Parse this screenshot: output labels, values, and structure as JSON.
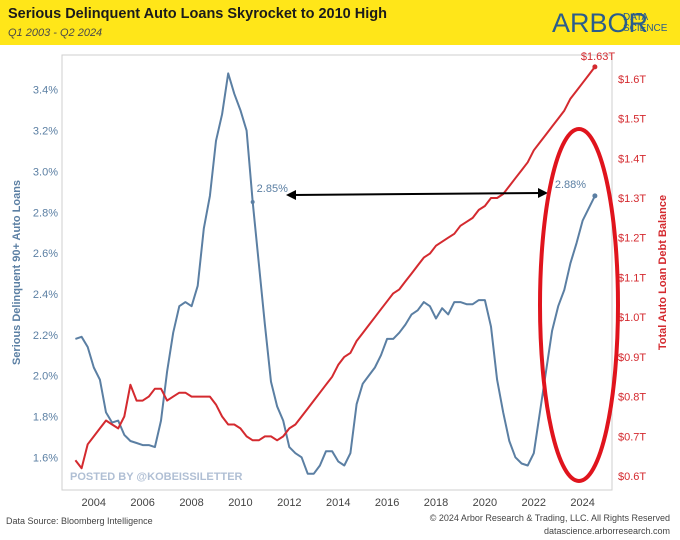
{
  "header": {
    "title": "Serious Delinquent Auto Loans Skyrocket to 2010 High",
    "subtitle": "Q1 2003 - Q2 2024",
    "logo_word": "ARBOR",
    "logo_sub_top": "DATA",
    "logo_sub_bottom": "SCIENCE"
  },
  "colors": {
    "header_bg": "#ffe619",
    "delinquency": "#5b7fa3",
    "debt": "#d42a2f",
    "arrow": "#000000",
    "ellipse": "#e0141d"
  },
  "chart_data": {
    "type": "line",
    "xlabel": "",
    "x_ticks": [
      "2004",
      "2006",
      "2008",
      "2010",
      "2012",
      "2014",
      "2016",
      "2018",
      "2020",
      "2022",
      "2024"
    ],
    "left_axis": {
      "label": "Serious Delinquent 90+ Auto Loans",
      "range": [
        1.44,
        3.57
      ],
      "ticks": [
        "1.6%",
        "1.8%",
        "2.0%",
        "2.2%",
        "2.4%",
        "2.6%",
        "2.8%",
        "3.0%",
        "3.2%",
        "3.4%"
      ]
    },
    "right_axis": {
      "label": "Total Auto Loan Debt Balance",
      "range": [
        0.565,
        1.66
      ],
      "ticks": [
        "$0.6T",
        "$0.7T",
        "$0.8T",
        "$0.9T",
        "$1.0T",
        "$1.1T",
        "$1.2T",
        "$1.3T",
        "$1.4T",
        "$1.5T",
        "$1.6T"
      ]
    },
    "series": [
      {
        "name": "Serious Delinquent 90+ Auto Loans",
        "axis": "left",
        "x": [
          2003.25,
          2003.5,
          2003.75,
          2004.0,
          2004.25,
          2004.5,
          2004.75,
          2005.0,
          2005.25,
          2005.5,
          2005.75,
          2006.0,
          2006.25,
          2006.5,
          2006.75,
          2007.0,
          2007.25,
          2007.5,
          2007.75,
          2008.0,
          2008.25,
          2008.5,
          2008.75,
          2009.0,
          2009.25,
          2009.5,
          2009.75,
          2010.0,
          2010.25,
          2010.5,
          2010.75,
          2011.0,
          2011.25,
          2011.5,
          2011.75,
          2012.0,
          2012.25,
          2012.5,
          2012.75,
          2013.0,
          2013.25,
          2013.5,
          2013.75,
          2014.0,
          2014.25,
          2014.5,
          2014.75,
          2015.0,
          2015.25,
          2015.5,
          2015.75,
          2016.0,
          2016.25,
          2016.5,
          2016.75,
          2017.0,
          2017.25,
          2017.5,
          2017.75,
          2018.0,
          2018.25,
          2018.5,
          2018.75,
          2019.0,
          2019.25,
          2019.5,
          2019.75,
          2020.0,
          2020.25,
          2020.5,
          2020.75,
          2021.0,
          2021.25,
          2021.5,
          2021.75,
          2022.0,
          2022.25,
          2022.5,
          2022.75,
          2023.0,
          2023.25,
          2023.5,
          2023.75,
          2024.0,
          2024.25,
          2024.5
        ],
        "values": [
          2.18,
          2.19,
          2.14,
          2.04,
          1.98,
          1.82,
          1.77,
          1.78,
          1.71,
          1.68,
          1.67,
          1.66,
          1.66,
          1.65,
          1.78,
          2.02,
          2.21,
          2.34,
          2.36,
          2.34,
          2.44,
          2.72,
          2.88,
          3.15,
          3.28,
          3.48,
          3.38,
          3.3,
          3.2,
          2.85,
          2.55,
          2.25,
          1.97,
          1.85,
          1.78,
          1.65,
          1.62,
          1.6,
          1.52,
          1.52,
          1.56,
          1.63,
          1.63,
          1.58,
          1.56,
          1.62,
          1.86,
          1.96,
          2.0,
          2.04,
          2.1,
          2.18,
          2.18,
          2.21,
          2.25,
          2.3,
          2.32,
          2.36,
          2.34,
          2.28,
          2.33,
          2.3,
          2.36,
          2.36,
          2.35,
          2.35,
          2.37,
          2.37,
          2.24,
          1.98,
          1.82,
          1.68,
          1.6,
          1.57,
          1.56,
          1.62,
          1.82,
          2.02,
          2.22,
          2.34,
          2.42,
          2.55,
          2.65,
          2.76,
          2.82,
          2.88
        ]
      },
      {
        "name": "Total Auto Loan Debt Balance",
        "axis": "right",
        "x": [
          2003.25,
          2003.5,
          2003.75,
          2004.0,
          2004.25,
          2004.5,
          2004.75,
          2005.0,
          2005.25,
          2005.5,
          2005.75,
          2006.0,
          2006.25,
          2006.5,
          2006.75,
          2007.0,
          2007.25,
          2007.5,
          2007.75,
          2008.0,
          2008.25,
          2008.5,
          2008.75,
          2009.0,
          2009.25,
          2009.5,
          2009.75,
          2010.0,
          2010.25,
          2010.5,
          2010.75,
          2011.0,
          2011.25,
          2011.5,
          2011.75,
          2012.0,
          2012.25,
          2012.5,
          2012.75,
          2013.0,
          2013.25,
          2013.5,
          2013.75,
          2014.0,
          2014.25,
          2014.5,
          2014.75,
          2015.0,
          2015.25,
          2015.5,
          2015.75,
          2016.0,
          2016.25,
          2016.5,
          2016.75,
          2017.0,
          2017.25,
          2017.5,
          2017.75,
          2018.0,
          2018.25,
          2018.5,
          2018.75,
          2019.0,
          2019.25,
          2019.5,
          2019.75,
          2020.0,
          2020.25,
          2020.5,
          2020.75,
          2021.0,
          2021.25,
          2021.5,
          2021.75,
          2022.0,
          2022.25,
          2022.5,
          2022.75,
          2023.0,
          2023.25,
          2023.5,
          2023.75,
          2024.0,
          2024.25,
          2024.5
        ],
        "values": [
          0.64,
          0.62,
          0.68,
          0.7,
          0.72,
          0.74,
          0.73,
          0.72,
          0.75,
          0.83,
          0.79,
          0.79,
          0.8,
          0.82,
          0.82,
          0.79,
          0.8,
          0.81,
          0.81,
          0.8,
          0.8,
          0.8,
          0.8,
          0.78,
          0.75,
          0.73,
          0.73,
          0.72,
          0.7,
          0.69,
          0.69,
          0.7,
          0.7,
          0.69,
          0.7,
          0.72,
          0.73,
          0.75,
          0.77,
          0.79,
          0.81,
          0.83,
          0.85,
          0.88,
          0.9,
          0.91,
          0.94,
          0.96,
          0.98,
          1.0,
          1.02,
          1.04,
          1.06,
          1.07,
          1.09,
          1.11,
          1.13,
          1.15,
          1.16,
          1.18,
          1.19,
          1.2,
          1.21,
          1.23,
          1.24,
          1.25,
          1.27,
          1.28,
          1.3,
          1.3,
          1.31,
          1.33,
          1.35,
          1.37,
          1.39,
          1.42,
          1.44,
          1.46,
          1.48,
          1.5,
          1.52,
          1.55,
          1.57,
          1.59,
          1.61,
          1.63
        ]
      }
    ],
    "annotations": {
      "delinquency_2010_label": "2.85%",
      "delinquency_2024_label": "2.88%",
      "debt_2024_label": "$1.63T",
      "watermark": "POSTED BY @KOBEISSILETTER"
    }
  },
  "footer": {
    "source": "Data Source: Bloomberg Intelligence",
    "copyright": "© 2024 Arbor Research & Trading, LLC. All Rights Reserved",
    "website": "datascience.arborresearch.com"
  }
}
